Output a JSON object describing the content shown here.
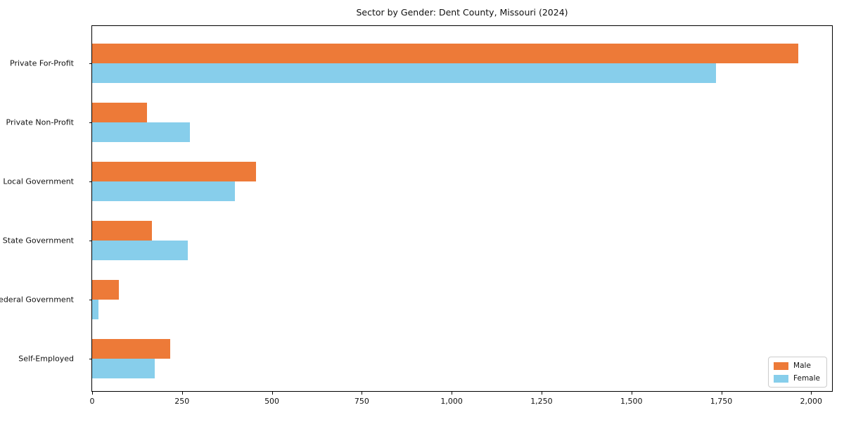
{
  "title": "Sector by Gender: Dent County, Missouri (2024)",
  "colors": {
    "male": "#ED7A38",
    "female": "#87CEEB",
    "spine": "#000000",
    "legend_border": "#cccccc",
    "text": "#111111"
  },
  "chart_data": {
    "type": "bar",
    "orientation": "horizontal",
    "title": "Sector by Gender: Dent County, Missouri (2024)",
    "categories": [
      "Private For-Profit",
      "Private Non-Profit",
      "Local Government",
      "State Government",
      "Federal Government",
      "Self-Employed"
    ],
    "series": [
      {
        "name": "Male",
        "color": "#ED7A38",
        "values": [
          1965,
          152,
          455,
          166,
          74,
          217
        ]
      },
      {
        "name": "Female",
        "color": "#87CEEB",
        "values": [
          1735,
          272,
          397,
          267,
          18,
          174
        ]
      }
    ],
    "xlabel": "",
    "ylabel": "",
    "xlim": [
      0,
      2062
    ],
    "x_ticks": [
      0,
      250,
      500,
      750,
      1000,
      1250,
      1500,
      1750,
      2000
    ],
    "x_tick_labels": [
      "0",
      "250",
      "500",
      "750",
      "1,000",
      "1,250",
      "1,500",
      "1,750",
      "2,000"
    ],
    "grid": false,
    "legend_position": "lower right"
  }
}
